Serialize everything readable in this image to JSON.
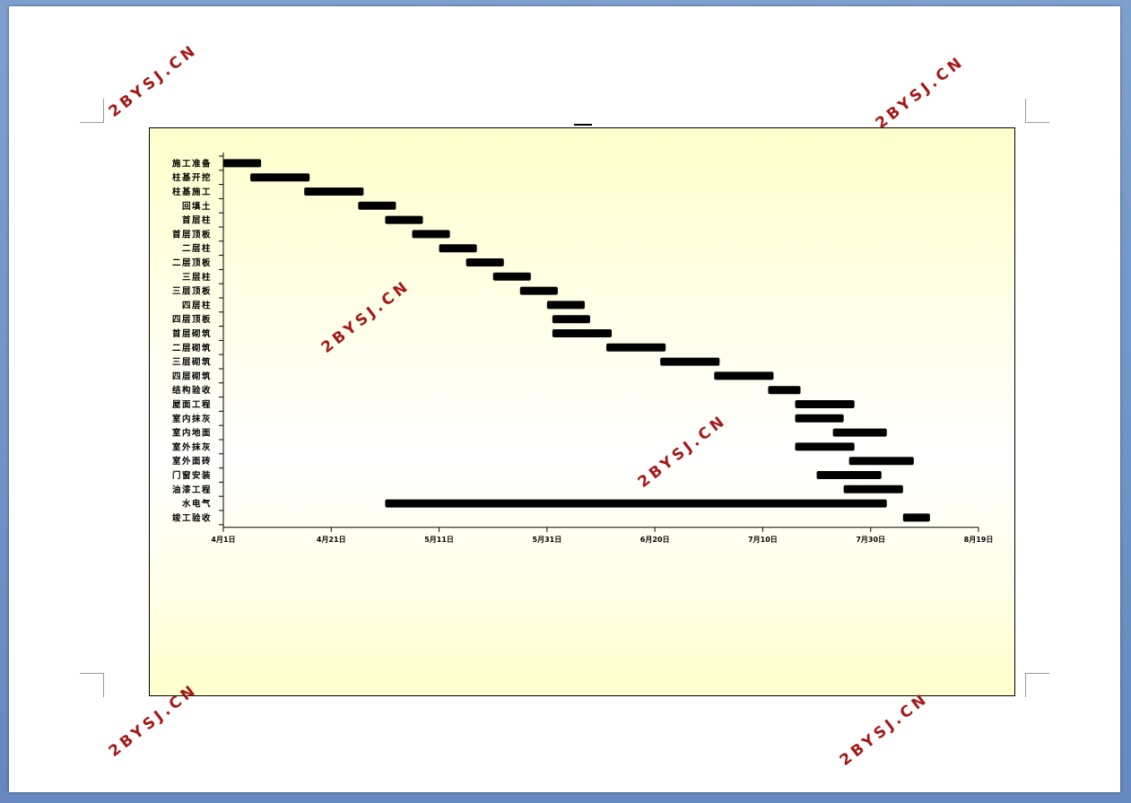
{
  "watermark_text": "2BYSJ.CN",
  "colors": {
    "bar": "#000000",
    "watermark": "#a51818",
    "frame_bg": "#ffffcc"
  },
  "chart_data": {
    "type": "gantt",
    "title": "",
    "xlabel": "",
    "ylabel": "",
    "x_ticks": [
      "4月1日",
      "4月21日",
      "5月11日",
      "5月31日",
      "6月20日",
      "7月10日",
      "7月30日",
      "8月19日"
    ],
    "x_range_days": [
      0,
      140
    ],
    "tasks": [
      {
        "name": "施工准备",
        "start": 0,
        "end": 7
      },
      {
        "name": "柱基开挖",
        "start": 5,
        "end": 16
      },
      {
        "name": "柱基施工",
        "start": 15,
        "end": 26
      },
      {
        "name": "回填土",
        "start": 25,
        "end": 32
      },
      {
        "name": "首层柱",
        "start": 30,
        "end": 37
      },
      {
        "name": "首层顶板",
        "start": 35,
        "end": 42
      },
      {
        "name": "二层柱",
        "start": 40,
        "end": 47
      },
      {
        "name": "二层顶板",
        "start": 45,
        "end": 52
      },
      {
        "name": "三层柱",
        "start": 50,
        "end": 57
      },
      {
        "name": "三层顶板",
        "start": 55,
        "end": 62
      },
      {
        "name": "四层柱",
        "start": 60,
        "end": 67
      },
      {
        "name": "四层顶板",
        "start": 61,
        "end": 68
      },
      {
        "name": "首层砌筑",
        "start": 61,
        "end": 72
      },
      {
        "name": "二层砌筑",
        "start": 71,
        "end": 82
      },
      {
        "name": "三层砌筑",
        "start": 81,
        "end": 92
      },
      {
        "name": "四层砌筑",
        "start": 91,
        "end": 102
      },
      {
        "name": "结构验收",
        "start": 101,
        "end": 107
      },
      {
        "name": "屋面工程",
        "start": 106,
        "end": 117
      },
      {
        "name": "室内抹灰",
        "start": 106,
        "end": 115
      },
      {
        "name": "室内地面",
        "start": 113,
        "end": 123
      },
      {
        "name": "室外抹灰",
        "start": 106,
        "end": 117
      },
      {
        "name": "室外面砖",
        "start": 116,
        "end": 128
      },
      {
        "name": "门窗安装",
        "start": 110,
        "end": 122
      },
      {
        "name": "油漆工程",
        "start": 115,
        "end": 126
      },
      {
        "name": "水电气",
        "start": 30,
        "end": 123
      },
      {
        "name": "竣工验收",
        "start": 126,
        "end": 131
      }
    ]
  }
}
